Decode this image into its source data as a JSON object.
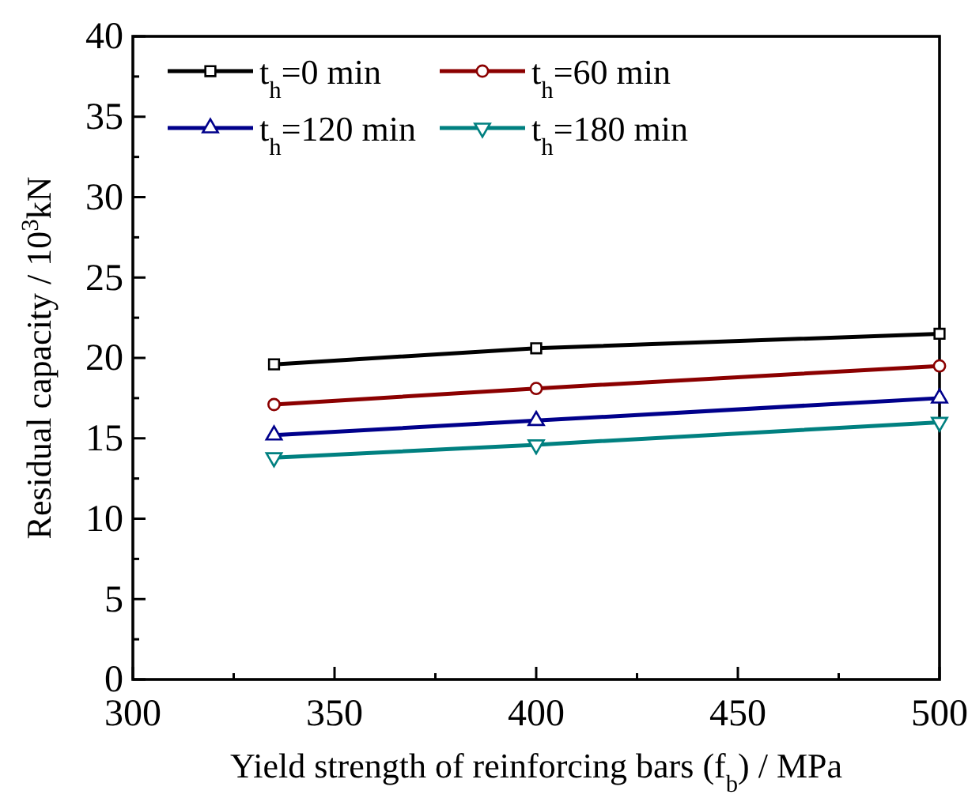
{
  "chart_data": {
    "type": "line",
    "xlabel": "Yield strength of reinforcing bars (f$_{b}$) / MPa",
    "ylabel": "Residual capacity / 10$^{3}$kN",
    "x": [
      335,
      400,
      500
    ],
    "series": [
      {
        "name": "t$_{h}$=0 min",
        "color": "#000000",
        "marker": "square",
        "values": [
          19.6,
          20.6,
          21.5
        ]
      },
      {
        "name": "t$_{h}$=60 min",
        "color": "#8b0000",
        "marker": "circle",
        "values": [
          17.1,
          18.1,
          19.5
        ]
      },
      {
        "name": "t$_{h}$=120 min",
        "color": "#00008b",
        "marker": "triangle",
        "values": [
          15.2,
          16.1,
          17.5
        ]
      },
      {
        "name": "t$_{h}$=180 min",
        "color": "#008080",
        "marker": "triangle-down",
        "values": [
          13.8,
          14.6,
          16.0
        ]
      }
    ],
    "xlim": [
      300,
      500
    ],
    "xticks": [
      300,
      {
        "value": 325,
        "label": null
      },
      350,
      {
        "value": 375,
        "label": null
      },
      400,
      {
        "value": 425,
        "label": null
      },
      450,
      {
        "value": 475,
        "label": null
      },
      500
    ],
    "ylim": [
      0,
      40
    ],
    "yticks": [
      0,
      {
        "value": 2.5,
        "label": null
      },
      5,
      {
        "value": 7.5,
        "label": null
      },
      10,
      {
        "value": 12.5,
        "label": null
      },
      15,
      {
        "value": 17.5,
        "label": null
      },
      20,
      {
        "value": 22.5,
        "label": null
      },
      25,
      {
        "value": 27.5,
        "label": null
      },
      30,
      {
        "value": 32.5,
        "label": null
      },
      35,
      {
        "value": 37.5,
        "label": null
      },
      40
    ],
    "legend": "top left",
    "grid": false,
    "line_style": "solid"
  }
}
